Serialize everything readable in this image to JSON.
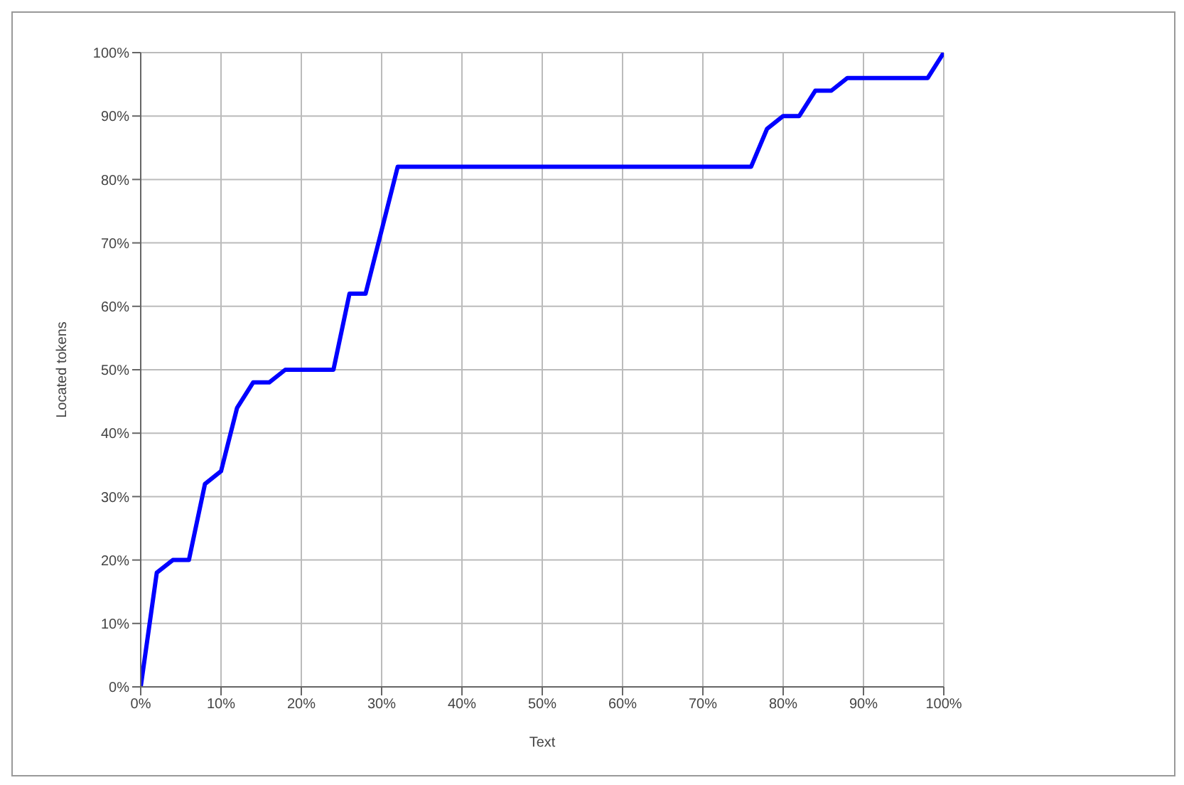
{
  "chart_data": {
    "type": "line",
    "xlabel": "Text",
    "ylabel": "Located tokens",
    "x": [
      0,
      2,
      4,
      6,
      8,
      10,
      12,
      14,
      16,
      18,
      24,
      26,
      28,
      32,
      76,
      78,
      80,
      82,
      84,
      86,
      88,
      98,
      100
    ],
    "series": [
      {
        "color": "#0000ff",
        "values": [
          0,
          18,
          20,
          20,
          32,
          34,
          44,
          48,
          48,
          50,
          50,
          62,
          62,
          82,
          82,
          88,
          90,
          90,
          94,
          94,
          96,
          96,
          100
        ]
      }
    ],
    "xlim": [
      0,
      100
    ],
    "xticks": [
      {
        "value": 0,
        "label": "0%"
      },
      {
        "value": 10,
        "label": "10%"
      },
      {
        "value": 20,
        "label": "20%"
      },
      {
        "value": 30,
        "label": "30%"
      },
      {
        "value": 40,
        "label": "40%"
      },
      {
        "value": 50,
        "label": "50%"
      },
      {
        "value": 60,
        "label": "60%"
      },
      {
        "value": 70,
        "label": "70%"
      },
      {
        "value": 80,
        "label": "80%"
      },
      {
        "value": 90,
        "label": "90%"
      },
      {
        "value": 100,
        "label": "100%"
      }
    ],
    "ylim": [
      0,
      100
    ],
    "yticks": [
      {
        "value": 0,
        "label": "0%"
      },
      {
        "value": 10,
        "label": "10%"
      },
      {
        "value": 20,
        "label": "20%"
      },
      {
        "value": 30,
        "label": "30%"
      },
      {
        "value": 40,
        "label": "40%"
      },
      {
        "value": 50,
        "label": "50%"
      },
      {
        "value": 60,
        "label": "60%"
      },
      {
        "value": 70,
        "label": "70%"
      },
      {
        "value": 80,
        "label": "80%"
      },
      {
        "value": 90,
        "label": "90%"
      },
      {
        "value": 100,
        "label": "100%"
      }
    ],
    "grid": true,
    "marker": "none",
    "line_style": "solid"
  }
}
